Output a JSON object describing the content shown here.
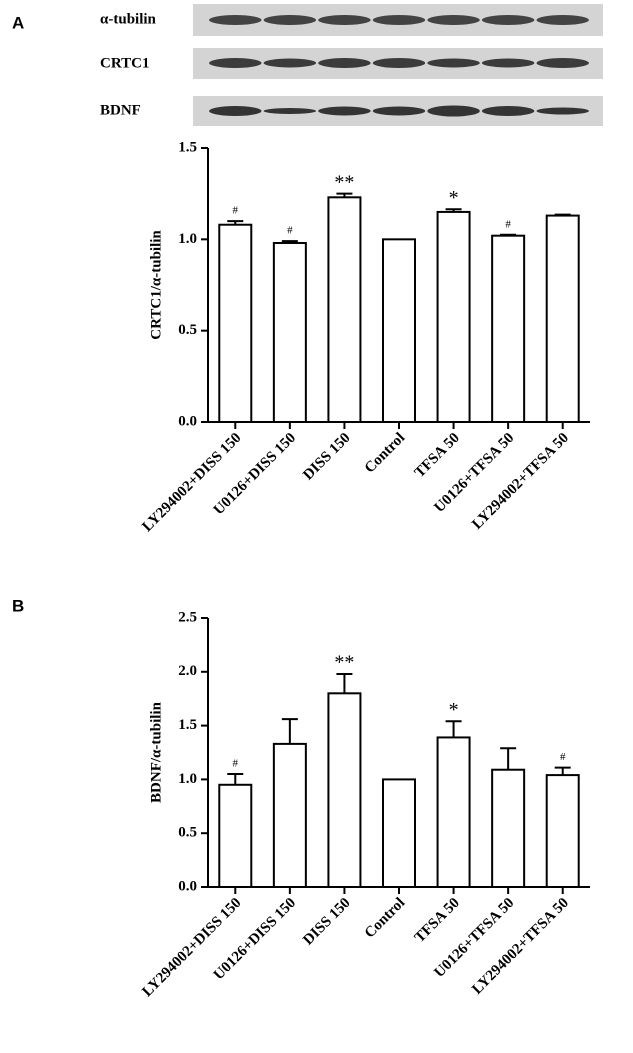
{
  "blot": {
    "labels": [
      "α-tubilin",
      "CRTC1",
      "BDNF"
    ]
  },
  "chart_data": [
    {
      "type": "bar",
      "panel_label": "A",
      "y_label": "CRTC1/α-tubilin",
      "categories": [
        "LY294002+DISS 150",
        "U0126+DISS 150",
        "DISS 150",
        "Control",
        "TFSA 50",
        "U0126+TFSA 50",
        "LY294002+TFSA 50"
      ],
      "values": [
        1.08,
        0.98,
        1.23,
        1.0,
        1.15,
        1.02,
        1.13
      ],
      "errors": [
        0.02,
        0.01,
        0.02,
        0,
        0.015,
        0.005,
        0.005
      ],
      "annotations": [
        "#",
        "#",
        "**",
        null,
        "*",
        "#",
        null
      ],
      "color": "#ffffff",
      "ylim": [
        0,
        1.5
      ],
      "yticks": [
        {
          "value": 0,
          "label": "0.0"
        },
        {
          "value": 0.5,
          "label": "0.5"
        },
        {
          "value": 1,
          "label": "1.0"
        },
        {
          "value": 1.5,
          "label": "1.5"
        }
      ]
    },
    {
      "type": "bar",
      "panel_label": "B",
      "y_label": "BDNF/α-tubilin",
      "categories": [
        "LY294002+DISS 150",
        "U0126+DISS 150",
        "DISS 150",
        "Control",
        "TFSA 50",
        "U0126+TFSA 50",
        "LY294002+TFSA 50"
      ],
      "values": [
        0.95,
        1.33,
        1.8,
        1.0,
        1.39,
        1.09,
        1.04
      ],
      "errors": [
        0.1,
        0.23,
        0.18,
        0,
        0.15,
        0.2,
        0.07
      ],
      "annotations": [
        "#",
        null,
        "**",
        null,
        "*",
        null,
        "#"
      ],
      "color": "#ffffff",
      "ylim": [
        0,
        2.5
      ],
      "yticks": [
        {
          "value": 0,
          "label": "0.0"
        },
        {
          "value": 0.5,
          "label": "0.5"
        },
        {
          "value": 1,
          "label": "1.0"
        },
        {
          "value": 1.5,
          "label": "1.5"
        },
        {
          "value": 2,
          "label": "2.0"
        },
        {
          "value": 2.5,
          "label": "2.5"
        }
      ]
    }
  ]
}
